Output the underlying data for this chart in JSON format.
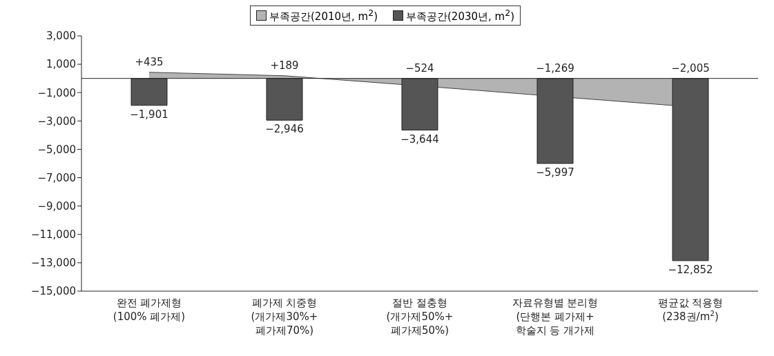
{
  "chart_data": {
    "type": "bar",
    "categories": [
      "완전 폐가제형\n(100% 폐가제)",
      "폐가제 치중형\n(개가제30%+\n폐가제70%)",
      "절반 절충형\n(개가제50%+\n폐가제50%)",
      "자료유형별 분리형\n(단행본 폐가제+\n학술지 등 개가제",
      "평균값 적용형\n(238권/m$^{2}$)"
    ],
    "series": [
      {
        "name": "부족공간(2010년, m$^{2}$)",
        "type": "area",
        "color": "#b3b3b3",
        "values": [
          435,
          189,
          -524,
          -1269,
          -2005
        ],
        "value_labels": [
          "+435",
          "+189",
          "−524",
          "−1,269",
          "−2,005"
        ]
      },
      {
        "name": "부족공간(2030년, m$^{2}$)",
        "color": "#555555",
        "values": [
          -1901,
          -2946,
          -3644,
          -5997,
          -12852
        ],
        "value_labels": [
          "−1,901",
          "−2,946",
          "−3,644",
          "−5,997",
          "−12,852"
        ]
      }
    ],
    "ylim": [
      -15000,
      3000
    ],
    "yticks": [
      {
        "value": 3000,
        "label": "3,000"
      },
      {
        "value": 1000,
        "label": "1,000"
      },
      {
        "value": -1000,
        "label": "−1,000"
      },
      {
        "value": -3000,
        "label": "−3,000"
      },
      {
        "value": -5000,
        "label": "−5,000"
      },
      {
        "value": -7000,
        "label": "−7,000"
      },
      {
        "value": -9000,
        "label": "−9,000"
      },
      {
        "value": -11000,
        "label": "−11,000"
      },
      {
        "value": -13000,
        "label": "−13,000"
      },
      {
        "value": -15000,
        "label": "−15,000"
      }
    ],
    "ref_lines": [
      {
        "axis": "y",
        "value": 0,
        "color": "#222222"
      }
    ],
    "grid": false,
    "legend": "top"
  }
}
